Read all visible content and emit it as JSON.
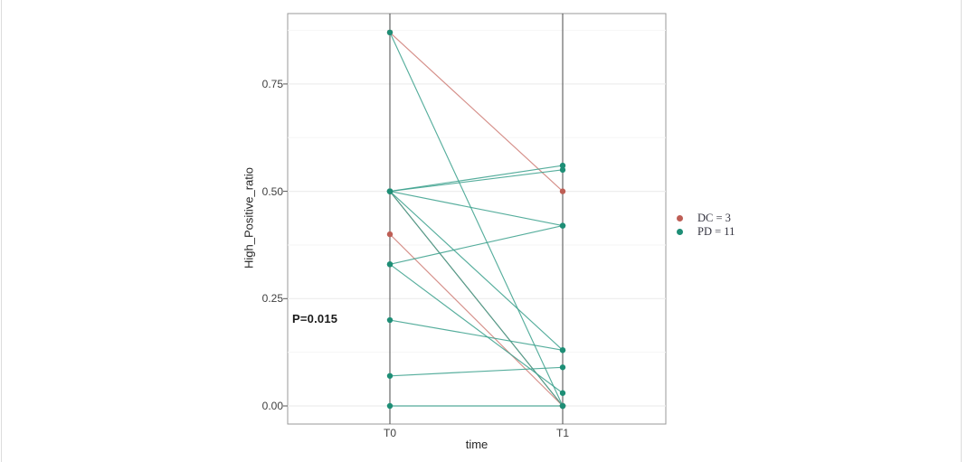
{
  "chart_data": {
    "type": "line",
    "subtype": "paired-slopegraph",
    "categories": [
      "T0",
      "T1"
    ],
    "xlabel": "time",
    "ylabel": "High_Positive_ratio",
    "y_ticks": [
      0.0,
      0.25,
      0.5,
      0.75
    ],
    "y_tick_labels": [
      "0.00",
      "0.25",
      "0.50",
      "0.75"
    ],
    "y_minor_ticks": [
      0.125,
      0.375,
      0.625,
      0.875
    ],
    "ylim": [
      -0.04,
      0.915
    ],
    "grid": "on",
    "legend_position": "right",
    "annotation": "P=0.015",
    "groups": [
      {
        "name": "DC",
        "n": 3,
        "legend_label": "DC = 3",
        "line_color": "#CE7B74",
        "dot_color": "#BE5E55",
        "pairs": [
          {
            "T0": 0.87,
            "T1": 0.5
          },
          {
            "T0": 0.5,
            "T1": 0.0
          },
          {
            "T0": 0.4,
            "T1": 0.0
          }
        ]
      },
      {
        "name": "PD",
        "n": 11,
        "legend_label": "PD = 11",
        "line_color": "#3AA08C",
        "dot_color": "#1E8E76",
        "pairs": [
          {
            "T0": 0.87,
            "T1": 0.0
          },
          {
            "T0": 0.5,
            "T1": 0.56
          },
          {
            "T0": 0.5,
            "T1": 0.55
          },
          {
            "T0": 0.5,
            "T1": 0.42
          },
          {
            "T0": 0.5,
            "T1": 0.13
          },
          {
            "T0": 0.5,
            "T1": 0.0
          },
          {
            "T0": 0.33,
            "T1": 0.42
          },
          {
            "T0": 0.33,
            "T1": 0.03
          },
          {
            "T0": 0.2,
            "T1": 0.13
          },
          {
            "T0": 0.07,
            "T1": 0.09
          },
          {
            "T0": 0.0,
            "T1": 0.0
          }
        ]
      }
    ]
  }
}
